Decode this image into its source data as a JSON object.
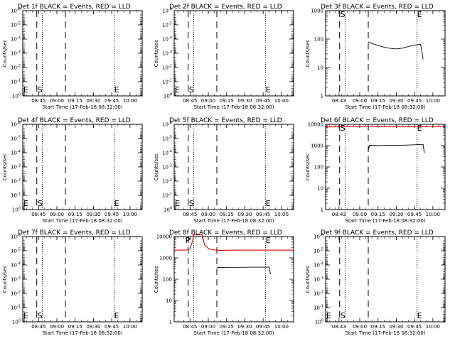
{
  "chart_data": [
    {
      "type": "line",
      "title": "Det 1f BLACK = Events, RED = LLD",
      "ylabel": "Counts/sec",
      "xlabel": "Start Time (17-Feb-18 08:32:00)",
      "xlim": [
        "08:32",
        "10:10"
      ],
      "xticks": [
        "08:45",
        "09:00",
        "09:15",
        "09:30",
        "09:45",
        "10:00"
      ],
      "yscale": "log",
      "ylim": [
        1,
        1e-06
      ],
      "yticks": [
        "10^-6",
        "10^-5",
        "10^-4",
        "10^-3",
        "10^-2",
        "10^-1",
        "10^0"
      ],
      "events": [
        {
          "label": "",
          "time": "08:32"
        },
        {
          "label": "S",
          "time": "08:43.5"
        }
      ],
      "dashed_lines": [
        "08:43.5",
        "09:07"
      ],
      "dotted_lines": [
        "08:48",
        "09:47"
      ],
      "end_marker": {
        "label": "E",
        "time": "09:47"
      },
      "series": []
    },
    {
      "type": "line",
      "title": "Det 2f BLACK = Events, RED = LLD",
      "ylabel": "Counts/sec",
      "xlabel": "Start Time (17-Feb-18 08:32:00)",
      "xlim": [
        "08:32",
        "10:10"
      ],
      "xticks": [
        "08:45",
        "09:00",
        "09:15",
        "09:30",
        "09:45",
        "10:00"
      ],
      "yscale": "log",
      "ylim": [
        1,
        1e-06
      ],
      "yticks": [
        "10^-6",
        "10^-5",
        "10^-4",
        "10^-3",
        "10^-2",
        "10^-1",
        "10^0"
      ],
      "events": [
        {
          "label": "",
          "time": "08:32"
        },
        {
          "label": "S",
          "time": "08:43.5"
        }
      ],
      "dashed_lines": [
        "08:43.5",
        "09:07"
      ],
      "dotted_lines": [
        "08:48",
        "09:47"
      ],
      "end_marker": {
        "label": "E",
        "time": "09:47"
      },
      "series": []
    },
    {
      "type": "line",
      "title": "Det 3f BLACK = Events, RED = LLD",
      "ylabel": "Counts/sec",
      "xlabel": "Start Time (17-Feb-18 08:32:00)",
      "xlim": [
        "08:32",
        "10:10"
      ],
      "xticks": [
        "08:43",
        "09:00",
        "09:15",
        "09:30",
        "09:45",
        "10:00"
      ],
      "yscale": "log",
      "ylim": [
        1,
        1000
      ],
      "yticks": [
        "1",
        "10",
        "100",
        "1000"
      ],
      "events": [
        {
          "label": "",
          "time": "08:32"
        },
        {
          "label": "S",
          "time": "08:43.5"
        }
      ],
      "dashed_lines": [
        "08:43.5",
        "09:07"
      ],
      "dotted_lines": [
        "08:48",
        "09:47"
      ],
      "end_marker": {
        "label": "E",
        "time": "09:47"
      },
      "series": [
        {
          "color": "#000000",
          "points": [
            [
              "09:07",
              80
            ],
            [
              "09:10",
              70
            ],
            [
              "09:15",
              60
            ],
            [
              "09:20",
              52
            ],
            [
              "09:25",
              47
            ],
            [
              "09:30",
              45
            ],
            [
              "09:35",
              48
            ],
            [
              "09:40",
              55
            ],
            [
              "09:45",
              62
            ],
            [
              "09:50",
              65
            ],
            [
              "09:52",
              20
            ]
          ]
        }
      ]
    },
    {
      "type": "line",
      "title": "Det 4f BLACK = Events, RED = LLD",
      "ylabel": "Counts/sec",
      "xlabel": "Start Time (17-Feb-18 08:32:00)",
      "xlim": [
        "08:32",
        "10:10"
      ],
      "xticks": [
        "08:45",
        "09:00",
        "09:15",
        "09:30",
        "09:45",
        "10:00"
      ],
      "yscale": "log",
      "ylim": [
        1,
        1e-06
      ],
      "yticks": [
        "10^-6",
        "10^-5",
        "10^-4",
        "10^-3",
        "10^-2",
        "10^-1",
        "10^0"
      ],
      "events": [
        {
          "label": "",
          "time": "08:32"
        },
        {
          "label": "S",
          "time": "08:43.5"
        }
      ],
      "dashed_lines": [
        "08:43.5",
        "09:07"
      ],
      "dotted_lines": [
        "08:48",
        "09:47"
      ],
      "end_marker": {
        "label": "E",
        "time": "09:47"
      },
      "series": []
    },
    {
      "type": "line",
      "title": "Det 5f BLACK = Events, RED = LLD",
      "ylabel": "Counts/sec",
      "xlabel": "Start Time (17-Feb-18 08:32:00)",
      "xlim": [
        "08:32",
        "10:10"
      ],
      "xticks": [
        "08:45",
        "09:00",
        "09:15",
        "09:30",
        "09:45",
        "10:00"
      ],
      "yscale": "log",
      "ylim": [
        1,
        1e-06
      ],
      "yticks": [
        "10^-6",
        "10^-5",
        "10^-4",
        "10^-3",
        "10^-2",
        "10^-1",
        "10^0"
      ],
      "events": [
        {
          "label": "",
          "time": "08:32"
        },
        {
          "label": "S",
          "time": "08:43.5"
        }
      ],
      "dashed_lines": [
        "08:43.5",
        "09:07"
      ],
      "dotted_lines": [
        "08:48",
        "09:47"
      ],
      "end_marker": {
        "label": "E",
        "time": "09:47"
      },
      "series": []
    },
    {
      "type": "line",
      "title": "Det 6f BLACK = Events, RED = LLD",
      "ylabel": "Counts/sec",
      "xlabel": "Start Time (17-Feb-18 08:32:00)",
      "xlim": [
        "08:32",
        "10:10"
      ],
      "xticks": [
        "08:43",
        "09:00",
        "09:15",
        "09:30",
        "09:45",
        "10:00"
      ],
      "yscale": "log",
      "ylim": [
        1,
        10000
      ],
      "yticks": [
        "1",
        "10",
        "100",
        "1000",
        "10000"
      ],
      "events": [
        {
          "label": "",
          "time": "08:32"
        },
        {
          "label": "S",
          "time": "08:43.5"
        }
      ],
      "dashed_lines": [
        "08:43.5",
        "09:07"
      ],
      "dotted_lines": [
        "08:48",
        "09:47"
      ],
      "end_marker": {
        "label": "E",
        "time": "09:47"
      },
      "series": [
        {
          "color": "#e00000",
          "points": [
            [
              "08:32",
              7500
            ],
            [
              "08:40",
              7600
            ],
            [
              "08:50",
              7800
            ],
            [
              "09:00",
              8000
            ],
            [
              "09:05",
              8200
            ],
            [
              "09:10",
              8000
            ],
            [
              "09:20",
              7700
            ],
            [
              "09:30",
              7600
            ],
            [
              "09:40",
              7600
            ],
            [
              "09:50",
              7700
            ],
            [
              "10:10",
              7700
            ]
          ]
        },
        {
          "color": "#000000",
          "points": [
            [
              "09:07",
              600
            ],
            [
              "09:08",
              1050
            ],
            [
              "09:15",
              1000
            ],
            [
              "09:25",
              1050
            ],
            [
              "09:35",
              1050
            ],
            [
              "09:45",
              1100
            ],
            [
              "09:52",
              1150
            ],
            [
              "09:53",
              450
            ]
          ]
        }
      ]
    },
    {
      "type": "line",
      "title": "Det 7f BLACK = Events, RED = LLD",
      "ylabel": "Counts/sec",
      "xlabel": "Start Time (17-Feb-18 08:32:00)",
      "xlim": [
        "08:32",
        "10:10"
      ],
      "xticks": [
        "08:45",
        "09:00",
        "09:15",
        "09:30",
        "09:45",
        "10:00"
      ],
      "yscale": "log",
      "ylim": [
        1,
        1e-06
      ],
      "yticks": [
        "10^-6",
        "10^-5",
        "10^-4",
        "10^-3",
        "10^-2",
        "10^-1",
        "10^0"
      ],
      "events": [
        {
          "label": "",
          "time": "08:32"
        },
        {
          "label": "S",
          "time": "08:43.5"
        }
      ],
      "dashed_lines": [
        "08:43.5",
        "09:07"
      ],
      "dotted_lines": [
        "08:48",
        "09:47"
      ],
      "end_marker": {
        "label": "E",
        "time": "09:47"
      },
      "series": []
    },
    {
      "type": "line",
      "title": "Det 8f BLACK = Events, RED = LLD",
      "ylabel": "Counts/sec",
      "xlabel": "Start Time (17-Feb-18 08:32:00)",
      "xlim": [
        "08:32",
        "10:10"
      ],
      "xticks": [
        "08:45",
        "09:00",
        "09:15",
        "09:30",
        "09:45",
        "10:00"
      ],
      "yscale": "log",
      "ylim": [
        1,
        10000
      ],
      "yticks": [
        "1",
        "10",
        "100",
        "1000",
        "10000"
      ],
      "events": [
        {
          "label": "P",
          "time": "08:40.5"
        },
        {
          "label": "",
          "time": "08:43.5"
        }
      ],
      "dashed_lines": [
        "08:43.5",
        "09:07"
      ],
      "dotted_lines": [
        "08:48",
        "09:47"
      ],
      "end_marker": {
        "label": "E",
        "time": "09:47"
      },
      "series": [
        {
          "color": "#e00000",
          "points": [
            [
              "08:32",
              2300
            ],
            [
              "08:38",
              2300
            ],
            [
              "08:42",
              2300
            ],
            [
              "08:45",
              2700
            ],
            [
              "08:47",
              6000
            ],
            [
              "08:48",
              12000
            ],
            [
              "08:55",
              12000
            ],
            [
              "08:57",
              4000
            ],
            [
              "09:00",
              2800
            ],
            [
              "09:03",
              2400
            ],
            [
              "09:10",
              2250
            ],
            [
              "09:20",
              2300
            ],
            [
              "09:40",
              2300
            ],
            [
              "10:10",
              2300
            ]
          ]
        },
        {
          "color": "#000000",
          "points": [
            [
              "09:07",
              350
            ],
            [
              "09:15",
              360
            ],
            [
              "09:25",
              360
            ],
            [
              "09:35",
              365
            ],
            [
              "09:45",
              365
            ],
            [
              "09:50",
              365
            ],
            [
              "09:51",
              170
            ]
          ]
        }
      ]
    },
    {
      "type": "line",
      "title": "Det 9f BLACK = Events, RED = LLD",
      "ylabel": "Counts/sec",
      "xlabel": "Start Time (17-Feb-18 08:32:00)",
      "xlim": [
        "08:32",
        "10:10"
      ],
      "xticks": [
        "08:43",
        "09:00",
        "09:15",
        "09:30",
        "09:45",
        "10:00"
      ],
      "yscale": "log",
      "ylim": [
        1,
        1e-06
      ],
      "yticks": [
        "10^-6",
        "10^-5",
        "10^-4",
        "10^-3",
        "10^-2",
        "10^-1",
        "10^0"
      ],
      "events": [
        {
          "label": "",
          "time": "08:32"
        },
        {
          "label": "S",
          "time": "08:43.5"
        }
      ],
      "dashed_lines": [
        "08:43.5",
        "09:07"
      ],
      "dotted_lines": [
        "08:48",
        "09:47"
      ],
      "end_marker": {
        "label": "E",
        "time": "09:47"
      },
      "series": []
    }
  ]
}
